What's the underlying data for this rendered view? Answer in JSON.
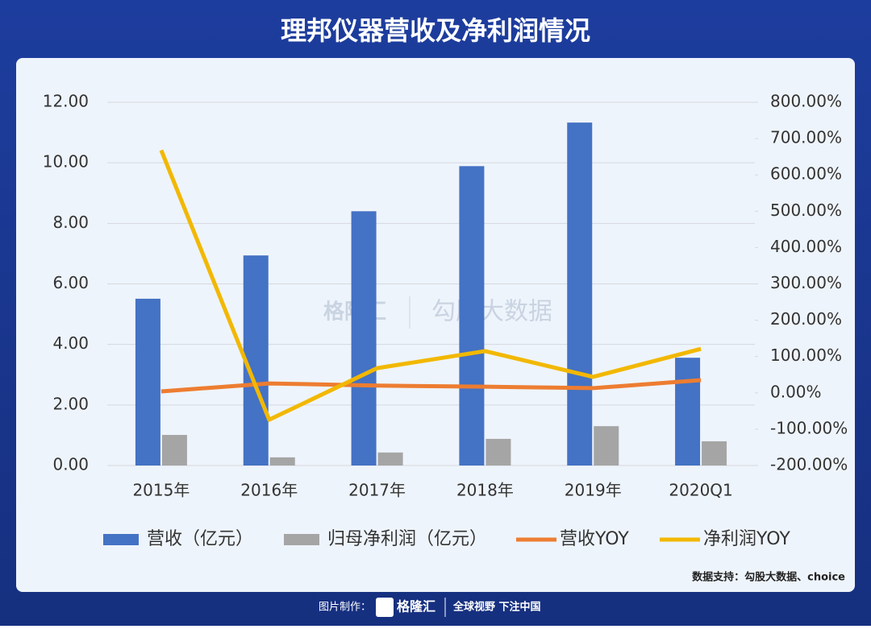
{
  "chart_data": {
    "type": "bar",
    "title": "理邦仪器营收及净利润情况",
    "categories": [
      "2015年",
      "2016年",
      "2017年",
      "2018年",
      "2019年",
      "2020Q1"
    ],
    "series": [
      {
        "name": "营收（亿元）",
        "type": "bar",
        "color": "#4472c4",
        "values": [
          5.51,
          6.94,
          8.4,
          9.89,
          11.33,
          3.56
        ]
      },
      {
        "name": "归母净利润（亿元）",
        "type": "bar",
        "color": "#a5a5a5",
        "values": [
          1.01,
          0.27,
          0.43,
          0.88,
          1.3,
          0.8
        ]
      },
      {
        "name": "营收YOY",
        "type": "line",
        "axis": "y2",
        "color": "#ed7d31",
        "values": [
          4,
          26,
          20,
          17,
          13,
          35
        ]
      },
      {
        "name": "净利润YOY",
        "type": "line",
        "axis": "y2",
        "color": "#f2b800",
        "values": [
          668,
          -74,
          68,
          115,
          44,
          121
        ]
      }
    ],
    "ylim": [
      0,
      12
    ],
    "yticks": [
      {
        "value": 0,
        "label": "0.00"
      },
      {
        "value": 2,
        "label": "2.00"
      },
      {
        "value": 4,
        "label": "4.00"
      },
      {
        "value": 6,
        "label": "6.00"
      },
      {
        "value": 8,
        "label": "8.00"
      },
      {
        "value": 10,
        "label": "10.00"
      },
      {
        "value": 12,
        "label": "12.00"
      }
    ],
    "y2lim": [
      -200,
      800
    ],
    "y2ticks": [
      {
        "value": -200,
        "label": "-200.00%"
      },
      {
        "value": -100,
        "label": "-100.00%"
      },
      {
        "value": 0,
        "label": "0.00%"
      },
      {
        "value": 100,
        "label": "100.00%"
      },
      {
        "value": 200,
        "label": "200.00%"
      },
      {
        "value": 300,
        "label": "300.00%"
      },
      {
        "value": 400,
        "label": "400.00%"
      },
      {
        "value": 500,
        "label": "500.00%"
      },
      {
        "value": 600,
        "label": "600.00%"
      },
      {
        "value": 700,
        "label": "700.00%"
      },
      {
        "value": 800,
        "label": "800.00%"
      }
    ],
    "grid": true,
    "legend": "bottom"
  },
  "watermark": [
    "格隆汇",
    "勾股大数据"
  ],
  "source": "数据支持：勾股大数据、choice",
  "footer": {
    "label": "图片制作：",
    "logo": "格隆汇",
    "slogan": "全球视野 下注中国"
  }
}
